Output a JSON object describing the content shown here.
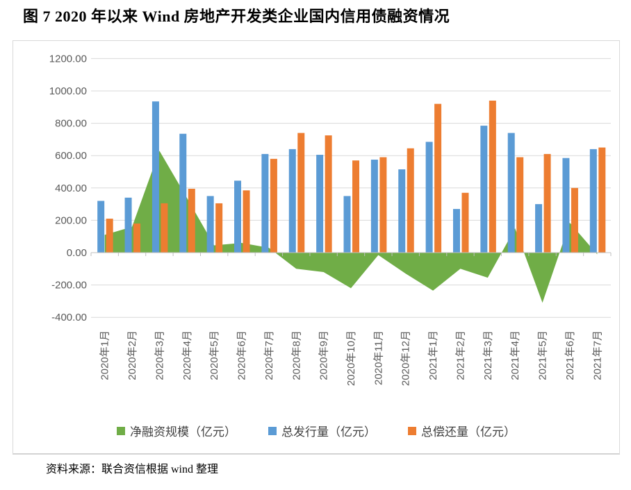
{
  "page": {
    "title": "图 7  2020 年以来 Wind 房地产开发类企业国内信用债融资情况",
    "source_note": "资料来源：联合资信根据 wind 整理"
  },
  "chart_data": {
    "type": "combo-bar-area",
    "title": "2020 年以来 Wind 房地产开发类企业国内信用债融资情况",
    "xlabel": "",
    "ylabel": "",
    "unit": "亿元",
    "categories": [
      "2020年1月",
      "2020年2月",
      "2020年3月",
      "2020年4月",
      "2020年5月",
      "2020年6月",
      "2020年7月",
      "2020年8月",
      "2020年9月",
      "2020年10月",
      "2020年11月",
      "2020年12月",
      "2021年1月",
      "2021年2月",
      "2021年3月",
      "2021年4月",
      "2021年5月",
      "2021年6月",
      "2021年7月"
    ],
    "series": [
      {
        "key": "net-financing",
        "name": "净融资规模（亿元）",
        "type": "area",
        "color": "#70AD47",
        "values": [
          110,
          160,
          630,
          340,
          45,
          60,
          30,
          -100,
          -120,
          -220,
          -15,
          -130,
          -235,
          -100,
          -155,
          150,
          -310,
          185,
          -10
        ]
      },
      {
        "key": "total-issuance",
        "name": "总发行量（亿元）",
        "type": "bar",
        "color": "#5B9BD5",
        "values": [
          320,
          340,
          935,
          735,
          350,
          445,
          610,
          640,
          605,
          350,
          575,
          515,
          685,
          270,
          785,
          740,
          300,
          585,
          640
        ]
      },
      {
        "key": "total-repayment",
        "name": "总偿还量（亿元）",
        "type": "bar",
        "color": "#ED7D31",
        "values": [
          210,
          180,
          305,
          395,
          305,
          385,
          580,
          740,
          725,
          570,
          590,
          645,
          920,
          370,
          940,
          590,
          610,
          400,
          650
        ]
      }
    ],
    "ylim": [
      -400,
      1200
    ],
    "ytick_step": 200,
    "ytick_labels": [
      "-400.00",
      "-200.00",
      "0.00",
      "200.00",
      "400.00",
      "600.00",
      "800.00",
      "1000.00",
      "1200.00"
    ],
    "grid": true,
    "legend_position": "bottom",
    "colors": {
      "gridline": "#D9D9D9",
      "axis": "#BFBFBF",
      "axis_label": "#595959",
      "legend_text": "#404040"
    }
  }
}
